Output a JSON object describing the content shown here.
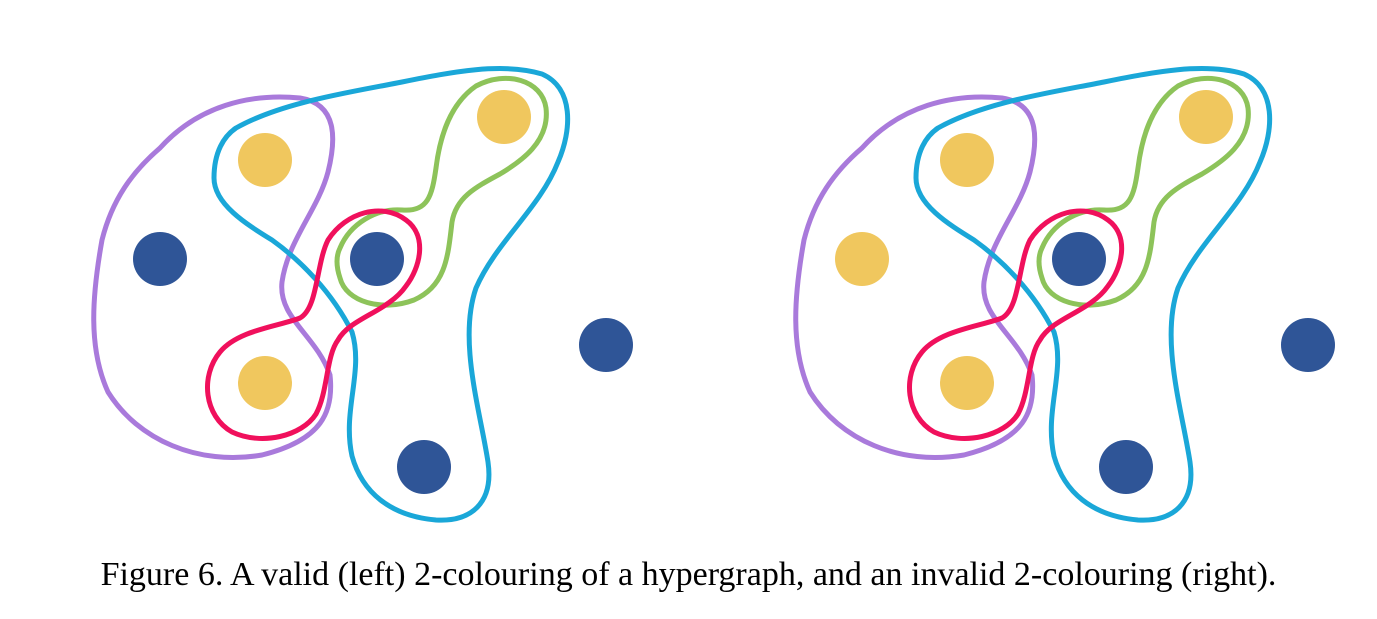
{
  "caption": "Figure 6. A valid (left) 2-colouring of a hypergraph, and an invalid 2-colouring (right).",
  "colors": {
    "vertex_blue": "#2f5597",
    "vertex_yellow": "#f0c75e",
    "edge_purple": "#a97adb",
    "edge_cyan": "#1aa7d8",
    "edge_green": "#8dc35a",
    "edge_red": "#f0105c"
  },
  "panels": [
    {
      "name": "valid (left)",
      "vertex_colours": [
        "yellow",
        "blue",
        "yellow",
        "blue",
        "blue",
        "yellow",
        "blue"
      ]
    },
    {
      "name": "invalid (right)",
      "vertex_colours": [
        "yellow",
        "yellow",
        "yellow",
        "blue",
        "blue",
        "yellow",
        "blue"
      ]
    }
  ]
}
